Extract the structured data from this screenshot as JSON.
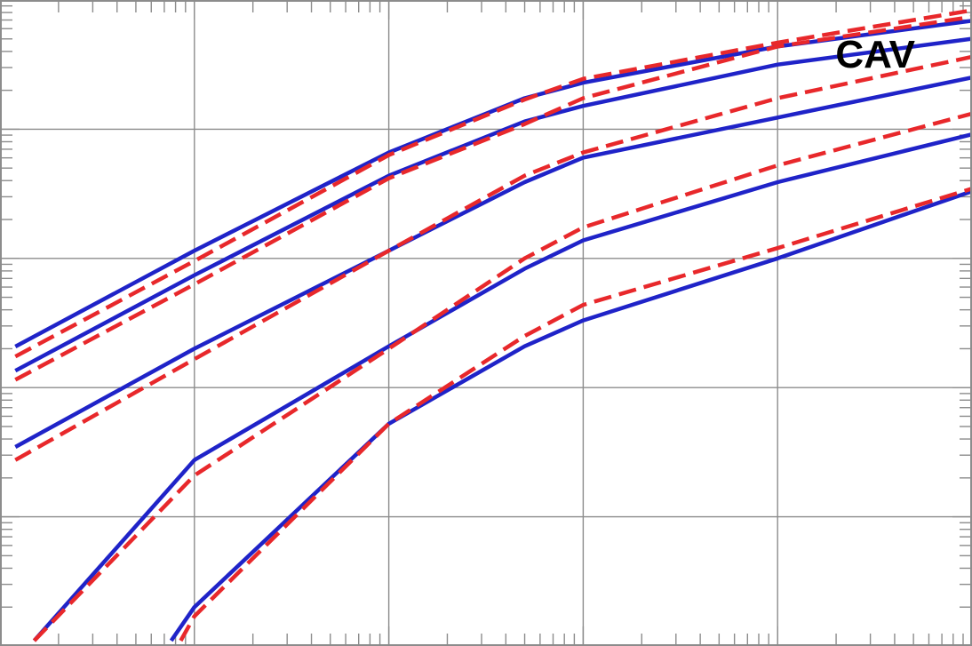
{
  "chart_data": {
    "type": "line",
    "title": "",
    "panel_label": "CAV",
    "xlabel": "",
    "ylabel": "",
    "x_scale": "log",
    "y_scale": "log",
    "xlim": [
      1,
      100000
    ],
    "ylim": [
      0.0001,
      10
    ],
    "grid": true,
    "legend": "none",
    "colors": {
      "solid": "#1f23c8",
      "dashed": "#e8282b",
      "grid": "#8c8c8c"
    },
    "series": [
      {
        "style": "solid",
        "x": [
          1.2,
          10,
          100,
          500,
          1000,
          10000,
          100000
        ],
        "y": [
          0.0208,
          0.1148,
          0.6607,
          1.7378,
          2.2909,
          4.3652,
          6.9183
        ]
      },
      {
        "style": "solid",
        "x": [
          1.2,
          10,
          100,
          500,
          1000,
          10000,
          100000
        ],
        "y": [
          0.0135,
          0.0741,
          0.4365,
          1.1482,
          1.5136,
          3.1623,
          5.0119
        ]
      },
      {
        "style": "solid",
        "x": [
          1.2,
          10,
          100,
          500,
          1000,
          10000,
          100000
        ],
        "y": [
          0.00347,
          0.02,
          0.1148,
          0.389,
          0.6026,
          1.2303,
          2.5119
        ]
      },
      {
        "style": "solid",
        "x": [
          1.5,
          10,
          100,
          500,
          1000,
          10000,
          100000
        ],
        "y": [
          0.00011,
          0.00275,
          0.0209,
          0.0832,
          0.138,
          0.389,
          0.912
        ]
      },
      {
        "style": "solid",
        "x": [
          7.6,
          10,
          100,
          500,
          1000,
          10000,
          100000
        ],
        "y": [
          0.00011,
          0.0002,
          0.00525,
          0.0209,
          0.0331,
          0.1,
          0.3311
        ]
      },
      {
        "style": "dashed",
        "x": [
          1.2,
          10,
          100,
          500,
          1000,
          10000,
          100000
        ],
        "y": [
          0.0174,
          0.0955,
          0.631,
          1.6982,
          2.4547,
          4.6774,
          8.3176
        ]
      },
      {
        "style": "dashed",
        "x": [
          1.2,
          10,
          100,
          500,
          1000,
          10000,
          100000
        ],
        "y": [
          0.0115,
          0.0631,
          0.4169,
          1.0965,
          1.7378,
          4.3652,
          7.4131
        ]
      },
      {
        "style": "dashed",
        "x": [
          1.2,
          10,
          100,
          500,
          1000,
          10000,
          100000
        ],
        "y": [
          0.00275,
          0.0166,
          0.1148,
          0.4365,
          0.6607,
          1.7378,
          3.6308
        ]
      },
      {
        "style": "dashed",
        "x": [
          1.5,
          10,
          100,
          500,
          1000,
          10000,
          100000
        ],
        "y": [
          0.00011,
          0.00209,
          0.02,
          0.1,
          0.1738,
          0.5248,
          1.3183
        ]
      },
      {
        "style": "dashed",
        "x": [
          8.5,
          10,
          100,
          500,
          1000,
          10000,
          100000
        ],
        "y": [
          0.00011,
          0.00017,
          0.00525,
          0.0251,
          0.0437,
          0.1202,
          0.3467
        ]
      }
    ]
  }
}
